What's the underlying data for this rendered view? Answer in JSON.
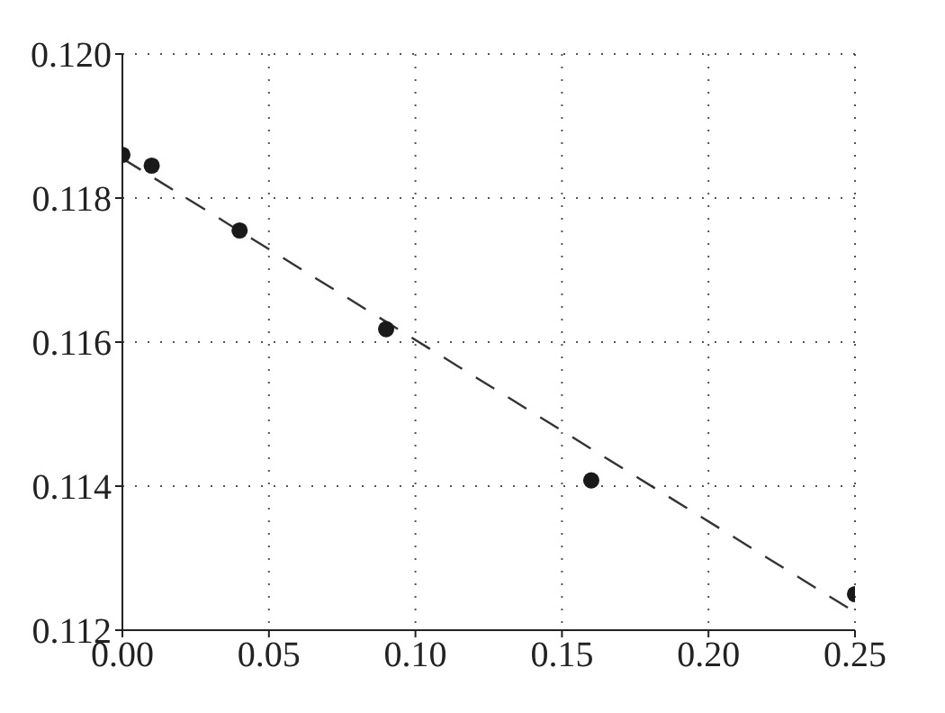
{
  "chart_data": {
    "type": "scatter",
    "xlim": [
      0,
      0.25
    ],
    "xticks": [
      {
        "value": 0,
        "label": "0.00"
      },
      {
        "value": 0.05,
        "label": "0.05"
      },
      {
        "value": 0.1,
        "label": "0.10"
      },
      {
        "value": 0.15,
        "label": "0.15"
      },
      {
        "value": 0.2,
        "label": "0.20"
      },
      {
        "value": 0.25,
        "label": "0.25"
      }
    ],
    "ylim": [
      0.112,
      0.12
    ],
    "yticks": [
      {
        "value": 0.112,
        "label": "0.112"
      },
      {
        "value": 0.114,
        "label": "0.114"
      },
      {
        "value": 0.116,
        "label": "0.116"
      },
      {
        "value": 0.118,
        "label": "0.118"
      },
      {
        "value": 0.12,
        "label": "0.120"
      }
    ],
    "grid": true,
    "marker": "circle",
    "series": [
      {
        "color": "#1a1a1a",
        "x": [
          0,
          0.01,
          0.04,
          0.09,
          0.16,
          0.25
        ],
        "values": [
          0.1186,
          0.11845,
          0.11755,
          0.11618,
          0.11408,
          0.1125
        ]
      },
      {
        "type": "line",
        "color": "#333333",
        "line_style": "dashed",
        "marker": "none",
        "x": [
          0,
          0.25
        ],
        "values": [
          0.11855,
          0.11225
        ]
      }
    ]
  }
}
